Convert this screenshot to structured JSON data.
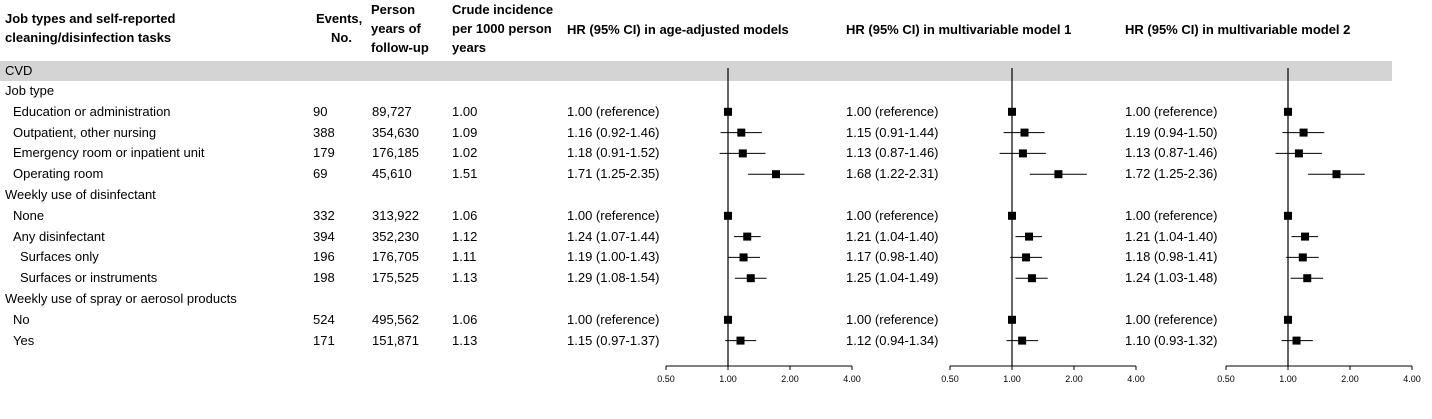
{
  "headers": {
    "label": "Job types and self-reported\ncleaning/disinfection tasks",
    "events": "Events,\nNo.",
    "person_years": "Person\nyears of\nfollow-up",
    "crude": "Crude incidence\nper 1000 person\nyears",
    "hr_age": "HR (95% CI) in age-adjusted models",
    "hr_m1": "HR (95% CI) in multivariable model 1",
    "hr_m2": "HR (95% CI) in multivariable model 2"
  },
  "outcome_band": "CVD",
  "chart_data": {
    "type": "table",
    "axis": {
      "scale": "log",
      "ticks": [
        0.5,
        1.0,
        2.0,
        4.0
      ],
      "tick_labels": [
        "0.50",
        "1.00",
        "2.00",
        "4.00"
      ],
      "xlim": [
        0.5,
        4.0
      ],
      "reference_line": 1.0
    },
    "panels": [
      "age-adjusted",
      "multivariable model 1",
      "multivariable model 2"
    ],
    "rows": [
      {
        "type": "group",
        "label": "Job type"
      },
      {
        "type": "data",
        "label": "Education or administration",
        "events": "90",
        "person_years": "89,727",
        "crude": "1.00",
        "hr": [
          {
            "text": "1.00 (reference)",
            "est": 1.0,
            "lo": 1.0,
            "hi": 1.0
          },
          {
            "text": "1.00 (reference)",
            "est": 1.0,
            "lo": 1.0,
            "hi": 1.0
          },
          {
            "text": "1.00 (reference)",
            "est": 1.0,
            "lo": 1.0,
            "hi": 1.0
          }
        ]
      },
      {
        "type": "data",
        "label": "Outpatient, other nursing",
        "events": "388",
        "person_years": "354,630",
        "crude": "1.09",
        "hr": [
          {
            "text": "1.16 (0.92-1.46)",
            "est": 1.16,
            "lo": 0.92,
            "hi": 1.46
          },
          {
            "text": "1.15 (0.91-1.44)",
            "est": 1.15,
            "lo": 0.91,
            "hi": 1.44
          },
          {
            "text": "1.19 (0.94-1.50)",
            "est": 1.19,
            "lo": 0.94,
            "hi": 1.5
          }
        ]
      },
      {
        "type": "data",
        "label": "Emergency room or inpatient unit",
        "events": "179",
        "person_years": "176,185",
        "crude": "1.02",
        "hr": [
          {
            "text": "1.18 (0.91-1.52)",
            "est": 1.18,
            "lo": 0.91,
            "hi": 1.52
          },
          {
            "text": "1.13 (0.87-1.46)",
            "est": 1.13,
            "lo": 0.87,
            "hi": 1.46
          },
          {
            "text": "1.13 (0.87-1.46)",
            "est": 1.13,
            "lo": 0.87,
            "hi": 1.46
          }
        ]
      },
      {
        "type": "data",
        "label": "Operating room",
        "events": "69",
        "person_years": "45,610",
        "crude": "1.51",
        "hr": [
          {
            "text": "1.71 (1.25-2.35)",
            "est": 1.71,
            "lo": 1.25,
            "hi": 2.35
          },
          {
            "text": "1.68 (1.22-2.31)",
            "est": 1.68,
            "lo": 1.22,
            "hi": 2.31
          },
          {
            "text": "1.72 (1.25-2.36)",
            "est": 1.72,
            "lo": 1.25,
            "hi": 2.36
          }
        ]
      },
      {
        "type": "group",
        "label": "Weekly use of disinfectant"
      },
      {
        "type": "data",
        "label": "None",
        "events": "332",
        "person_years": "313,922",
        "crude": "1.06",
        "hr": [
          {
            "text": "1.00 (reference)",
            "est": 1.0,
            "lo": 1.0,
            "hi": 1.0
          },
          {
            "text": "1.00 (reference)",
            "est": 1.0,
            "lo": 1.0,
            "hi": 1.0
          },
          {
            "text": "1.00 (reference)",
            "est": 1.0,
            "lo": 1.0,
            "hi": 1.0
          }
        ]
      },
      {
        "type": "data",
        "label": "Any disinfectant",
        "events": "394",
        "person_years": "352,230",
        "crude": "1.12",
        "hr": [
          {
            "text": "1.24 (1.07-1.44)",
            "est": 1.24,
            "lo": 1.07,
            "hi": 1.44
          },
          {
            "text": "1.21 (1.04-1.40)",
            "est": 1.21,
            "lo": 1.04,
            "hi": 1.4
          },
          {
            "text": "1.21 (1.04-1.40)",
            "est": 1.21,
            "lo": 1.04,
            "hi": 1.4
          }
        ]
      },
      {
        "type": "data",
        "sub": true,
        "label": "Surfaces only",
        "events": "196",
        "person_years": "176,705",
        "crude": "1.11",
        "hr": [
          {
            "text": "1.19 (1.00-1.43)",
            "est": 1.19,
            "lo": 1.0,
            "hi": 1.43
          },
          {
            "text": "1.17 (0.98-1.40)",
            "est": 1.17,
            "lo": 0.98,
            "hi": 1.4
          },
          {
            "text": "1.18 (0.98-1.41)",
            "est": 1.18,
            "lo": 0.98,
            "hi": 1.41
          }
        ]
      },
      {
        "type": "data",
        "sub": true,
        "label": "Surfaces or instruments",
        "events": "198",
        "person_years": "175,525",
        "crude": "1.13",
        "hr": [
          {
            "text": "1.29 (1.08-1.54)",
            "est": 1.29,
            "lo": 1.08,
            "hi": 1.54
          },
          {
            "text": "1.25 (1.04-1.49)",
            "est": 1.25,
            "lo": 1.04,
            "hi": 1.49
          },
          {
            "text": "1.24 (1.03-1.48)",
            "est": 1.24,
            "lo": 1.03,
            "hi": 1.48
          }
        ]
      },
      {
        "type": "group",
        "label": "Weekly use of spray or aerosol products"
      },
      {
        "type": "data",
        "label": "No",
        "events": "524",
        "person_years": "495,562",
        "crude": "1.06",
        "hr": [
          {
            "text": "1.00 (reference)",
            "est": 1.0,
            "lo": 1.0,
            "hi": 1.0
          },
          {
            "text": "1.00 (reference)",
            "est": 1.0,
            "lo": 1.0,
            "hi": 1.0
          },
          {
            "text": "1.00 (reference)",
            "est": 1.0,
            "lo": 1.0,
            "hi": 1.0
          }
        ]
      },
      {
        "type": "data",
        "label": "Yes",
        "events": "171",
        "person_years": "151,871",
        "crude": "1.13",
        "hr": [
          {
            "text": "1.15 (0.97-1.37)",
            "est": 1.15,
            "lo": 0.97,
            "hi": 1.37
          },
          {
            "text": "1.12 (0.94-1.34)",
            "est": 1.12,
            "lo": 0.94,
            "hi": 1.34
          },
          {
            "text": "1.10 (0.93-1.32)",
            "est": 1.1,
            "lo": 0.93,
            "hi": 1.32
          }
        ]
      }
    ]
  }
}
